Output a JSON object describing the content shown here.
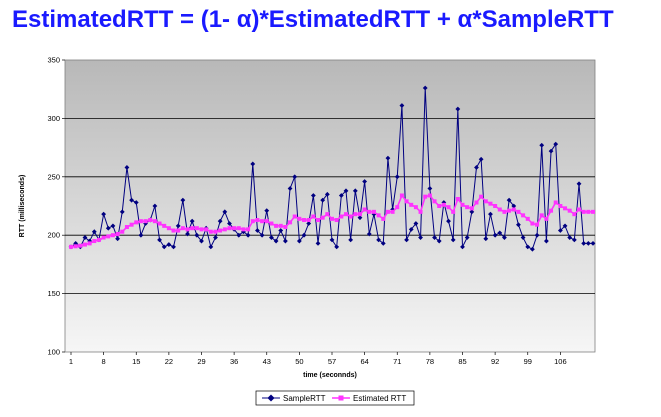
{
  "slide": {
    "title": "EstimatedRTT = (1- α)*EstimatedRTT + α*SampleRTT"
  },
  "chart_data": {
    "type": "line",
    "xlabel": "time (seconnds)",
    "ylabel": "RTT (milliseconds)",
    "xlim": [
      1,
      113
    ],
    "ylim": [
      100,
      350
    ],
    "yticks": [
      100,
      150,
      200,
      250,
      300,
      350
    ],
    "xticks": [
      1,
      8,
      15,
      22,
      29,
      36,
      43,
      50,
      57,
      64,
      71,
      78,
      85,
      92,
      99,
      106
    ],
    "grid": true,
    "legend": "bottom-center",
    "x": [
      1,
      2,
      3,
      4,
      5,
      6,
      7,
      8,
      9,
      10,
      11,
      12,
      13,
      14,
      15,
      16,
      17,
      18,
      19,
      20,
      21,
      22,
      23,
      24,
      25,
      26,
      27,
      28,
      29,
      30,
      31,
      32,
      33,
      34,
      35,
      36,
      37,
      38,
      39,
      40,
      41,
      42,
      43,
      44,
      45,
      46,
      47,
      48,
      49,
      50,
      51,
      52,
      53,
      54,
      55,
      56,
      57,
      58,
      59,
      60,
      61,
      62,
      63,
      64,
      65,
      66,
      67,
      68,
      69,
      70,
      71,
      72,
      73,
      74,
      75,
      76,
      77,
      78,
      79,
      80,
      81,
      82,
      83,
      84,
      85,
      86,
      87,
      88,
      89,
      90,
      91,
      92,
      93,
      94,
      95,
      96,
      97,
      98,
      99,
      100,
      101,
      102,
      103,
      104,
      105,
      106,
      107,
      108,
      109,
      110,
      111,
      112,
      113
    ],
    "series": [
      {
        "name": "SampleRTT",
        "color": "#000080",
        "marker": "diamond",
        "values": [
          190,
          193,
          190,
          198,
          195,
          203,
          196,
          218,
          206,
          208,
          197,
          220,
          258,
          230,
          228,
          200,
          210,
          213,
          225,
          196,
          190,
          192,
          190,
          208,
          230,
          201,
          212,
          200,
          195,
          206,
          190,
          198,
          212,
          220,
          210,
          205,
          200,
          203,
          200,
          261,
          204,
          200,
          221,
          198,
          195,
          204,
          195,
          240,
          250,
          195,
          200,
          210,
          234,
          193,
          230,
          235,
          196,
          190,
          234,
          238,
          196,
          238,
          215,
          246,
          201,
          218,
          196,
          193,
          266,
          222,
          250,
          311,
          196,
          205,
          210,
          198,
          326,
          240,
          198,
          195,
          228,
          212,
          196,
          308,
          190,
          198,
          220,
          258,
          265,
          197,
          218,
          200,
          202,
          198,
          230,
          225,
          209,
          198,
          190,
          188,
          200,
          277,
          195,
          272,
          278,
          204,
          208,
          198,
          196,
          244,
          193,
          193,
          193
        ]
      },
      {
        "name": "Estimated RTT",
        "color": "#ff33ff",
        "marker": "square",
        "values": [
          190,
          190.5,
          191,
          192,
          193,
          195,
          196,
          198,
          199,
          200,
          201,
          203,
          207,
          209,
          211,
          212,
          212,
          213,
          212,
          210,
          208,
          206,
          204,
          204,
          206,
          205,
          206,
          206,
          205,
          205,
          203,
          203,
          204,
          205,
          206,
          206,
          206,
          205,
          205,
          212,
          213,
          212,
          212,
          210,
          208,
          208,
          207,
          211,
          216,
          214,
          213,
          213,
          216,
          213,
          215,
          218,
          214,
          213,
          216,
          218,
          216,
          218,
          218,
          222,
          220,
          220,
          217,
          214,
          220,
          220,
          224,
          234,
          229,
          226,
          224,
          220,
          233,
          234,
          229,
          225,
          226,
          224,
          220,
          231,
          226,
          224,
          223,
          228,
          233,
          229,
          227,
          225,
          222,
          220,
          221,
          222,
          220,
          217,
          214,
          210,
          209,
          217,
          214,
          221,
          228,
          225,
          223,
          221,
          218,
          222,
          220,
          220,
          220
        ]
      }
    ]
  }
}
